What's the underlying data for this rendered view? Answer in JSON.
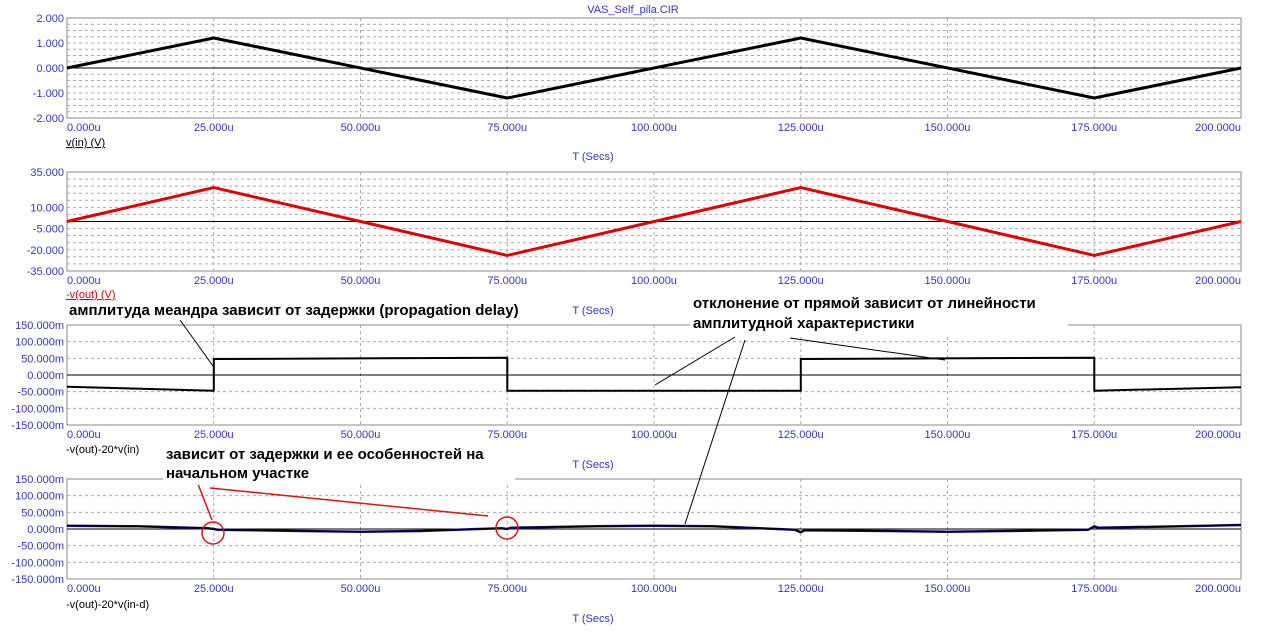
{
  "window_title": "VAS_Self_pila.CIR",
  "colors": {
    "tick_text": "#3333cc",
    "grid": "#b0b0b0",
    "trace_black": "#000000",
    "trace_red": "#e00000",
    "trace_blue": "#1a1a99",
    "annotation_red": "#dd1111"
  },
  "annotations": {
    "a1": "амплитуда меандра зависит от задержки (propagation delay)",
    "a2_line1": "отклонение от прямой зависит от линейности",
    "a2_line2": "амплитудной характеристики",
    "a3_line1": "зависит от задержки и ее особенностей  на",
    "a3_line2": "начальном участке"
  },
  "chart_data": [
    {
      "type": "line",
      "x_ticks": [
        "0.000u",
        "25.000u",
        "50.000u",
        "75.000u",
        "100.000u",
        "125.000u",
        "150.000u",
        "175.000u",
        "200.000u"
      ],
      "y_ticks": [
        "2.000",
        "1.000",
        "0.000",
        "-1.000",
        "-2.000"
      ],
      "ylim": [
        -2,
        2
      ],
      "grid": true,
      "xlabel": "T (Secs)",
      "trace_label": "v(in) (V)",
      "series": [
        {
          "name": "v(in) (V)",
          "color": "#000000",
          "x": [
            0,
            25,
            75,
            125,
            175,
            200
          ],
          "y": [
            0,
            1.2,
            -1.2,
            1.2,
            -1.2,
            0
          ]
        }
      ]
    },
    {
      "type": "line",
      "x_ticks": [
        "0.000u",
        "25.000u",
        "50.000u",
        "75.000u",
        "100.000u",
        "125.000u",
        "150.000u",
        "175.000u",
        "200.000u"
      ],
      "y_ticks": [
        "35.000",
        "10.000",
        "-5.000",
        "-20.000",
        "-35.000"
      ],
      "ylim": [
        -35,
        35
      ],
      "grid": true,
      "xlabel": "T (Secs)",
      "trace_label": "-v(out) (V)",
      "series": [
        {
          "name": "-v(out) (V)",
          "color": "#e00000",
          "x": [
            0,
            25,
            75,
            125,
            175,
            200
          ],
          "y": [
            0,
            24,
            -24,
            24,
            -24,
            0
          ]
        }
      ]
    },
    {
      "type": "line",
      "x_ticks": [
        "0.000u",
        "25.000u",
        "50.000u",
        "75.000u",
        "100.000u",
        "125.000u",
        "150.000u",
        "175.000u",
        "200.000u"
      ],
      "y_ticks": [
        "150.000m",
        "100.000m",
        "50.000m",
        "0.000m",
        "-50.000m",
        "-100.000m",
        "-150.000m"
      ],
      "ylim": [
        -150,
        150
      ],
      "grid": true,
      "xlabel": "T (Secs)",
      "trace_label": "-v(out)-20*v(in)",
      "series": [
        {
          "name": "-v(out)-20*v(in)",
          "color": "#000000",
          "x": [
            0,
            25,
            25,
            75,
            75,
            125,
            125,
            175,
            175,
            200
          ],
          "y": [
            -35,
            -47,
            48,
            52,
            -47,
            -47,
            48,
            52,
            -47,
            -37
          ]
        }
      ]
    },
    {
      "type": "line",
      "x_ticks": [
        "0.000u",
        "25.000u",
        "50.000u",
        "75.000u",
        "100.000u",
        "125.000u",
        "150.000u",
        "175.000u",
        "200.000u"
      ],
      "y_ticks": [
        "150.000m",
        "100.000m",
        "50.000m",
        "0.000m",
        "-50.000m",
        "-100.000m",
        "-150.000m"
      ],
      "ylim": [
        -150,
        150
      ],
      "grid": true,
      "xlabel": "T (Secs)",
      "trace_label": "-v(out)-20*v(in-d)",
      "series": [
        {
          "name": "-v(out)-20*v(in-d)",
          "color": "#1a1a99",
          "x": [
            0,
            12,
            24,
            25,
            25.6,
            40,
            50,
            60,
            74,
            75,
            75.6,
            90,
            100,
            110,
            124,
            125,
            125.6,
            140,
            150,
            160,
            174,
            175,
            175.6,
            190,
            200
          ],
          "y": [
            10,
            8,
            2,
            0,
            -2,
            -6,
            -8,
            -6,
            2,
            0,
            4,
            8,
            10,
            8,
            -2,
            -10,
            -4,
            -6,
            -8,
            -6,
            -2,
            8,
            4,
            8,
            12
          ]
        }
      ]
    }
  ]
}
